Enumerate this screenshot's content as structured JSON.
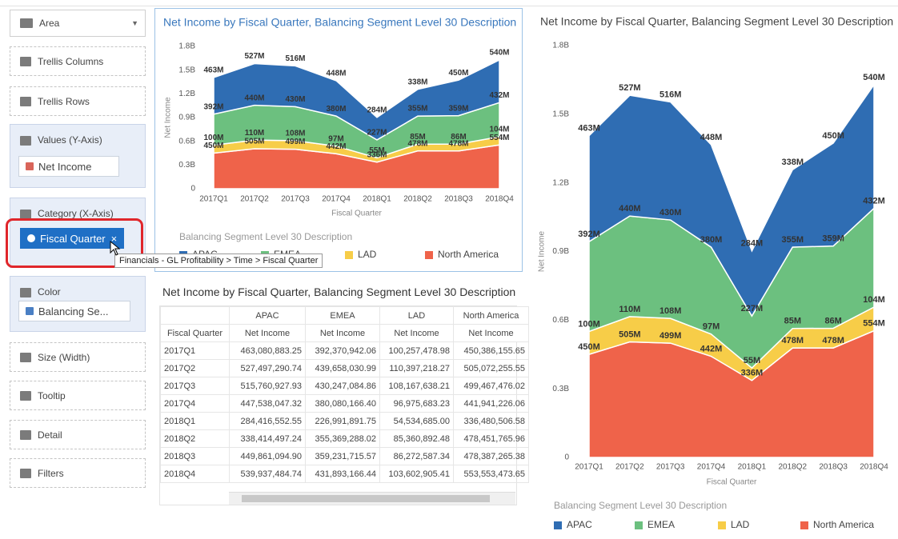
{
  "sidebar": {
    "chart_type": "Area",
    "shelves": [
      {
        "title": "Trellis Columns"
      },
      {
        "title": "Trellis Rows"
      },
      {
        "title": "Values (Y-Axis)",
        "item": "Net Income"
      },
      {
        "title": "Category (X-Axis)",
        "item": "Fiscal Quarter"
      },
      {
        "title": "Color",
        "item": "Balancing Se..."
      },
      {
        "title": "Size (Width)"
      },
      {
        "title": "Tooltip"
      },
      {
        "title": "Detail"
      },
      {
        "title": "Filters"
      }
    ],
    "tooltip": "Financials - GL Profitability > Time > Fiscal Quarter"
  },
  "table": {
    "title": "Net Income by Fiscal Quarter, Balancing Segment Level 30 Description",
    "columns": [
      "APAC",
      "EMEA",
      "LAD",
      "North America"
    ],
    "row_header": "Fiscal Quarter",
    "measures": [
      "Net Income",
      "Net Income",
      "Net Income",
      "Net Income"
    ],
    "rows": [
      [
        "2017Q1",
        "463,080,883.25",
        "392,370,942.06",
        "100,257,478.98",
        "450,386,155.65"
      ],
      [
        "2017Q2",
        "527,497,290.74",
        "439,658,030.99",
        "110,397,218.27",
        "505,072,255.55"
      ],
      [
        "2017Q3",
        "515,760,927.93",
        "430,247,084.86",
        "108,167,638.21",
        "499,467,476.02"
      ],
      [
        "2017Q4",
        "447,538,047.32",
        "380,080,166.40",
        "96,975,683.23",
        "441,941,226.06"
      ],
      [
        "2018Q1",
        "284,416,552.55",
        "226,991,891.75",
        "54,534,685.00",
        "336,480,506.58"
      ],
      [
        "2018Q2",
        "338,414,497.24",
        "355,369,288.02",
        "85,360,892.48",
        "478,451,765.96"
      ],
      [
        "2018Q3",
        "449,861,094.90",
        "359,231,715.57",
        "86,272,587.34",
        "478,387,265.38"
      ],
      [
        "2018Q4",
        "539,937,484.74",
        "431,893,166.44",
        "103,602,905.41",
        "553,553,473.65"
      ]
    ]
  },
  "chart_data": [
    {
      "type": "area",
      "title": "Net Income by Fiscal Quarter, Balancing Segment Level 30 Description",
      "x_label": "Fiscal Quarter",
      "y_label": "Net Income",
      "legend_title": "Balancing Segment Level 30 Description",
      "categories": [
        "2017Q1",
        "2017Q2",
        "2017Q3",
        "2017Q4",
        "2018Q1",
        "2018Q2",
        "2018Q3",
        "2018Q4"
      ],
      "ylim": [
        0,
        1800000000
      ],
      "yticks": [
        0,
        {
          "value": 300000000,
          "label": "0.3B"
        },
        {
          "value": 600000000,
          "label": "0.6B"
        },
        {
          "value": 900000000,
          "label": "0.9B"
        },
        {
          "value": 1200000000,
          "label": "1.2B"
        },
        {
          "value": 1500000000,
          "label": "1.5B"
        },
        {
          "value": 1800000000,
          "label": "1.8B"
        }
      ],
      "series": [
        {
          "name": "APAC",
          "color": "#2f6db3",
          "values": [
            463080883.25,
            527497290.74,
            515760927.93,
            447538047.32,
            284416552.55,
            338414497.24,
            449861094.9,
            539937484.74
          ],
          "value_labels": [
            "463M",
            "527M",
            "516M",
            "448M",
            "284M",
            "338M",
            "450M",
            "540M"
          ]
        },
        {
          "name": "EMEA",
          "color": "#6cc07f",
          "values": [
            392370942.06,
            439658030.99,
            430247084.86,
            380080166.4,
            226991891.75,
            355369288.02,
            359231715.57,
            431893166.44
          ],
          "value_labels": [
            "392M",
            "440M",
            "430M",
            "380M",
            "227M",
            "355M",
            "359M",
            "432M"
          ]
        },
        {
          "name": "LAD",
          "color": "#f7cd48",
          "values": [
            100257478.98,
            110397218.27,
            108167638.21,
            96975683.23,
            54534685.0,
            85360892.48,
            86272587.34,
            103602905.41
          ],
          "value_labels": [
            "100M",
            "110M",
            "108M",
            "97M",
            "55M",
            "85M",
            "86M",
            "104M"
          ]
        },
        {
          "name": "North America",
          "color": "#ef634a",
          "values": [
            450386155.65,
            505072255.55,
            499467476.02,
            441941226.06,
            336480506.58,
            478451765.96,
            478387265.38,
            553553473.65
          ],
          "value_labels": [
            "450M",
            "505M",
            "499M",
            "442M",
            "336M",
            "478M",
            "478M",
            "554M"
          ]
        }
      ]
    },
    {
      "type": "area",
      "title": "Net Income by Fiscal Quarter, Balancing Segment Level 30 Description",
      "x_label": "Fiscal Quarter",
      "y_label": "Net Income",
      "legend_title": "Balancing Segment Level 30 Description",
      "categories": [
        "2017Q1",
        "2017Q2",
        "2017Q3",
        "2017Q4",
        "2018Q1",
        "2018Q2",
        "2018Q3",
        "2018Q4"
      ],
      "ylim": [
        0,
        1800000000
      ],
      "yticks": [
        0,
        {
          "value": 300000000,
          "label": "0.3B"
        },
        {
          "value": 600000000,
          "label": "0.6B"
        },
        {
          "value": 900000000,
          "label": "0.9B"
        },
        {
          "value": 1200000000,
          "label": "1.2B"
        },
        {
          "value": 1500000000,
          "label": "1.5B"
        },
        {
          "value": 1800000000,
          "label": "1.8B"
        }
      ],
      "series": [
        {
          "name": "APAC",
          "color": "#2f6db3",
          "values": [
            463080883.25,
            527497290.74,
            515760927.93,
            447538047.32,
            284416552.55,
            338414497.24,
            449861094.9,
            539937484.74
          ],
          "value_labels": [
            "463M",
            "527M",
            "516M",
            "448M",
            "284M",
            "338M",
            "450M",
            "540M"
          ]
        },
        {
          "name": "EMEA",
          "color": "#6cc07f",
          "values": [
            392370942.06,
            439658030.99,
            430247084.86,
            380080166.4,
            226991891.75,
            355369288.02,
            359231715.57,
            431893166.44
          ],
          "value_labels": [
            "392M",
            "440M",
            "430M",
            "380M",
            "227M",
            "355M",
            "359M",
            "432M"
          ]
        },
        {
          "name": "LAD",
          "color": "#f7cd48",
          "values": [
            100257478.98,
            110397218.27,
            108167638.21,
            96975683.23,
            54534685.0,
            85360892.48,
            86272587.34,
            103602905.41
          ],
          "value_labels": [
            "100M",
            "110M",
            "108M",
            "97M",
            "55M",
            "85M",
            "86M",
            "104M"
          ]
        },
        {
          "name": "North America",
          "color": "#ef634a",
          "values": [
            450386155.65,
            505072255.55,
            499467476.02,
            441941226.06,
            336480506.58,
            478451765.96,
            478387265.38,
            553553473.65
          ],
          "value_labels": [
            "450M",
            "505M",
            "499M",
            "442M",
            "336M",
            "478M",
            "478M",
            "554M"
          ]
        }
      ]
    }
  ]
}
